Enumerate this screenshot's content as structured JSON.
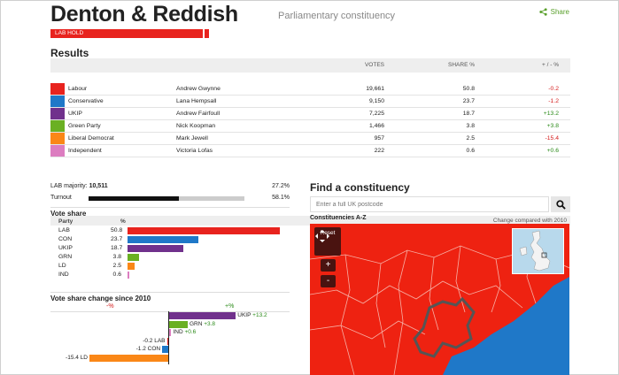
{
  "header": {
    "title": "Denton & Reddish",
    "subtitle": "Parliamentary constituency",
    "share_label": "Share",
    "hold_label": "LAB HOLD"
  },
  "results": {
    "heading": "Results",
    "columns": {
      "votes": "VOTES",
      "share": "SHARE %",
      "change": "+ / - %"
    },
    "rows": [
      {
        "party": "Labour",
        "candidate": "Andrew Gwynne",
        "votes": "19,661",
        "share": "50.8",
        "change": "-0.2",
        "color": "#e8231e"
      },
      {
        "party": "Conservative",
        "candidate": "Lana Hempsall",
        "votes": "9,150",
        "share": "23.7",
        "change": "-1.2",
        "color": "#1f78c8"
      },
      {
        "party": "UKIP",
        "candidate": "Andrew Fairfoull",
        "votes": "7,225",
        "share": "18.7",
        "change": "+13.2",
        "color": "#70318c"
      },
      {
        "party": "Green Party",
        "candidate": "Nick Koopman",
        "votes": "1,466",
        "share": "3.8",
        "change": "+3.8",
        "color": "#6ab023"
      },
      {
        "party": "Liberal Democrat",
        "candidate": "Mark Jewell",
        "votes": "957",
        "share": "2.5",
        "change": "-15.4",
        "color": "#fa8717"
      },
      {
        "party": "Independent",
        "candidate": "Victoria Lofas",
        "votes": "222",
        "share": "0.6",
        "change": "+0.6",
        "color": "#dc7dc0"
      }
    ],
    "comparison_note": "Change compared with 2010"
  },
  "stats": {
    "majority_label": "LAB majority:",
    "majority_value": "10,511",
    "majority_pct": "27.2%",
    "turnout_label": "Turnout",
    "turnout_pct": "58.1%",
    "turnout_fraction": 0.581
  },
  "vote_share": {
    "heading": "Vote share",
    "col_party": "Party",
    "col_pct": "%",
    "rows": [
      {
        "party": "LAB",
        "value": "50.8",
        "num": 50.8,
        "color": "#e8231e"
      },
      {
        "party": "CON",
        "value": "23.7",
        "num": 23.7,
        "color": "#1f78c8"
      },
      {
        "party": "UKIP",
        "value": "18.7",
        "num": 18.7,
        "color": "#70318c"
      },
      {
        "party": "GRN",
        "value": "3.8",
        "num": 3.8,
        "color": "#6ab023"
      },
      {
        "party": "LD",
        "value": "2.5",
        "num": 2.5,
        "color": "#fa8717"
      },
      {
        "party": "IND",
        "value": "0.6",
        "num": 0.6,
        "color": "#dc7dc0"
      }
    ]
  },
  "share_change": {
    "heading": "Vote share change since 2010",
    "neg_label": "-%",
    "pos_label": "+%",
    "rows": [
      {
        "party": "UKIP",
        "value": "+13.2",
        "num": 13.2,
        "color": "#70318c"
      },
      {
        "party": "GRN",
        "value": "+3.8",
        "num": 3.8,
        "color": "#6ab023"
      },
      {
        "party": "IND",
        "value": "+0.6",
        "num": 0.6,
        "color": "#dc7dc0"
      },
      {
        "party": "LAB",
        "value": "-0.2",
        "num": -0.2,
        "color": "#e8231e"
      },
      {
        "party": "CON",
        "value": "-1.2",
        "num": -1.2,
        "color": "#1f78c8"
      },
      {
        "party": "LD",
        "value": "-15.4",
        "num": -15.4,
        "color": "#fa8717"
      }
    ]
  },
  "finder": {
    "heading": "Find a constituency",
    "placeholder": "Enter a full UK postcode",
    "search_icon": "search-icon",
    "az_label": "Constituencies A-Z",
    "reset_label": "Reset",
    "zoom_in": "+",
    "zoom_out": "-"
  }
}
